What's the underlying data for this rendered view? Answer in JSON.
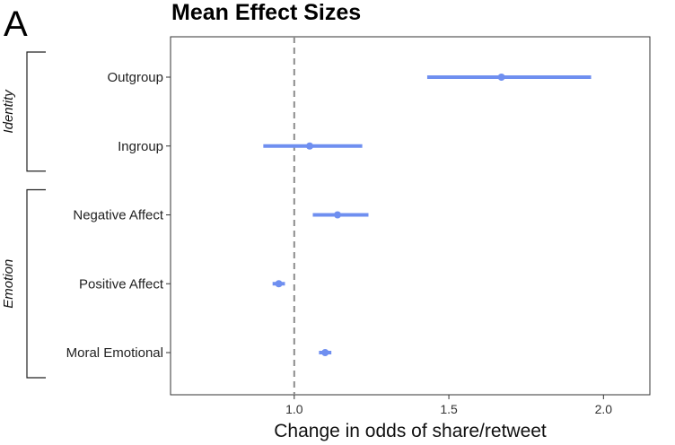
{
  "panel_letter": "A",
  "chart_data": {
    "type": "scatter",
    "subtype": "forest-plot",
    "title": "Mean Effect Sizes",
    "xlabel": "Change in odds of share/retweet",
    "ylabel": "",
    "xlim": [
      0.6,
      2.15
    ],
    "xticks": [
      1.0,
      1.5,
      2.0
    ],
    "xtick_labels": [
      "1.0",
      "1.5",
      "2.0"
    ],
    "reference_line": 1.0,
    "grid": false,
    "color": "#6f8ff0",
    "categories": [
      "Outgroup",
      "Ingroup",
      "Negative Affect",
      "Positive Affect",
      "Moral Emotional"
    ],
    "estimates": [
      1.67,
      1.05,
      1.14,
      0.95,
      1.1
    ],
    "ci_low": [
      1.43,
      0.9,
      1.06,
      0.93,
      1.08
    ],
    "ci_high": [
      1.96,
      1.22,
      1.24,
      0.97,
      1.12
    ],
    "groups": [
      {
        "label": "Identity",
        "members": [
          "Outgroup",
          "Ingroup"
        ]
      },
      {
        "label": "Emotion",
        "members": [
          "Negative Affect",
          "Positive Affect",
          "Moral Emotional"
        ]
      }
    ]
  }
}
